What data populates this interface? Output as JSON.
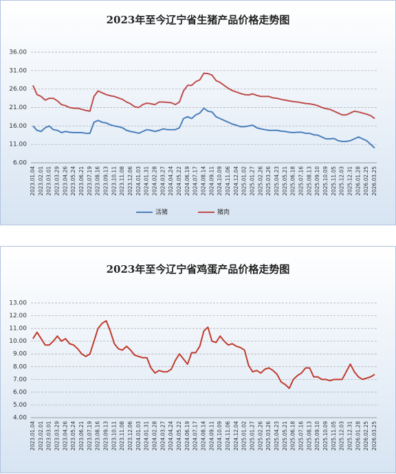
{
  "chart_data": [
    {
      "type": "line",
      "title": "2023年至今辽宁省生猪产品价格走势图",
      "legend": "bottom",
      "grid": true,
      "categories": [
        "2023.01.04",
        null,
        "2023.02.01",
        null,
        "2023.03.01",
        null,
        "2023.03.29",
        null,
        "2023.04.26",
        null,
        "2023.05.24",
        null,
        "2023.06.21",
        null,
        "2023.07.19",
        null,
        "2023.08.16",
        null,
        "2023.09.13",
        null,
        "2023.10.11",
        null,
        "2023.11.08",
        null,
        "2023.12.06",
        null,
        "2024.01.03",
        null,
        "2024.01.31",
        null,
        "2024.02.28",
        null,
        "2024.03.27",
        null,
        "2024.04.24",
        null,
        "2024.05.22",
        null,
        "2024.06.19",
        null,
        "2024.07.17",
        null,
        "2024.08.14",
        null,
        "2024.09.11",
        null,
        "2024.10.09",
        null,
        "2024.11.06",
        null,
        "2024.12.04",
        null,
        "2025.01.02",
        null,
        "2025.01.27",
        null,
        "2025.02.26",
        null,
        "2025.03.26",
        null,
        "2025.04.23",
        null,
        "2025.05.21",
        null,
        "2025.06.18",
        null,
        "2025.07.16",
        null,
        "2025.08.13",
        null,
        "2025.09.10",
        null,
        "2025.10.09",
        null,
        "2025.11.05",
        null,
        "2025.12.03",
        null,
        "2025.12.31",
        null,
        "2026.01.28",
        null,
        "2026.02.25",
        null,
        "2026.03.25"
      ],
      "series": [
        {
          "name": "活猪",
          "color": "#4a7ebb",
          "values": [
            16.0,
            14.8,
            14.5,
            15.5,
            16.0,
            15.0,
            14.8,
            14.2,
            14.5,
            14.3,
            14.2,
            14.2,
            14.2,
            14.0,
            14.0,
            17.0,
            17.5,
            17.0,
            16.8,
            16.3,
            16.0,
            15.8,
            15.5,
            14.8,
            14.5,
            14.3,
            14.0,
            14.5,
            15.0,
            14.8,
            14.5,
            14.8,
            15.2,
            15.0,
            15.0,
            15.0,
            15.5,
            18.0,
            18.5,
            18.0,
            19.0,
            19.5,
            20.8,
            20.0,
            19.8,
            18.5,
            18.0,
            17.5,
            17.0,
            16.5,
            16.2,
            15.8,
            15.8,
            16.0,
            16.2,
            15.5,
            15.2,
            15.0,
            14.8,
            14.8,
            14.8,
            14.6,
            14.5,
            14.3,
            14.2,
            14.3,
            14.3,
            14.0,
            14.0,
            13.6,
            13.5,
            13.0,
            12.5,
            12.5,
            12.6,
            12.0,
            11.8,
            11.8,
            12.0,
            12.5,
            13.0,
            12.5,
            12.0,
            11.0,
            10.0
          ]
        },
        {
          "name": "猪肉",
          "color": "#be4b48",
          "values": [
            27.0,
            24.5,
            24.0,
            23.0,
            23.5,
            23.5,
            22.8,
            21.8,
            21.5,
            21.0,
            20.8,
            20.8,
            20.5,
            20.2,
            20.0,
            24.0,
            25.5,
            25.0,
            24.5,
            24.2,
            24.0,
            23.6,
            23.2,
            22.5,
            22.0,
            21.2,
            21.0,
            21.8,
            22.2,
            22.0,
            21.8,
            22.5,
            22.5,
            22.4,
            22.3,
            21.8,
            22.5,
            25.5,
            27.0,
            27.0,
            28.0,
            28.5,
            30.3,
            30.2,
            29.8,
            28.3,
            27.8,
            27.0,
            26.2,
            25.6,
            25.2,
            24.8,
            24.5,
            24.4,
            24.7,
            24.3,
            24.0,
            24.0,
            24.0,
            23.6,
            23.5,
            23.2,
            23.0,
            22.8,
            22.6,
            22.5,
            22.3,
            22.1,
            22.0,
            21.8,
            21.5,
            21.0,
            20.7,
            20.5,
            20.0,
            19.5,
            19.0,
            19.0,
            19.5,
            20.0,
            19.8,
            19.5,
            19.2,
            18.8,
            18.0
          ]
        }
      ],
      "ylim": [
        6,
        36
      ],
      "yticks": [
        {
          "value": 6,
          "label": "6.00"
        },
        {
          "value": 11,
          "label": "11.00"
        },
        {
          "value": 16,
          "label": "16.00"
        },
        {
          "value": 21,
          "label": "21.00"
        },
        {
          "value": 26,
          "label": "26.00"
        },
        {
          "value": 31,
          "label": "31.00"
        },
        {
          "value": 36,
          "label": "36.00"
        }
      ]
    },
    {
      "type": "line",
      "title": "2023年至今辽宁省鸡蛋产品价格走势图",
      "grid": true,
      "categories": [
        "2023.01.04",
        null,
        "2023.02.01",
        null,
        "2023.03.01",
        null,
        "2023.03.29",
        null,
        "2023.04.26",
        null,
        "2023.05.24",
        null,
        "2023.06.21",
        null,
        "2023.07.19",
        null,
        "2023.08.16",
        null,
        "2023.09.13",
        null,
        "2023.10.11",
        null,
        "2023.11.08",
        null,
        "2023.12.06",
        null,
        "2024.01.03",
        null,
        "2024.01.31",
        null,
        "2024.02.28",
        null,
        "2024.03.27",
        null,
        "2024.04.24",
        null,
        "2024.05.22",
        null,
        "2024.06.19",
        null,
        "2024.07.17",
        null,
        "2024.08.14",
        null,
        "2024.09.11",
        null,
        "2024.10.09",
        null,
        "2024.11.06",
        null,
        "2024.12.04",
        null,
        "2025.01.02",
        null,
        "2025.01.27",
        null,
        "2025.02.26",
        null,
        "2025.03.26",
        null,
        "2025.04.23",
        null,
        "2025.05.21",
        null,
        "2025.06.18",
        null,
        "2025.07.16",
        null,
        "2025.08.13",
        null,
        "2025.09.10",
        null,
        "2025.10.09",
        null,
        "2025.11.05",
        null,
        "2025.12.03",
        null,
        "2025.12.31",
        null,
        "2026.01.28",
        null,
        "2026.02.25",
        null,
        "2026.03.25"
      ],
      "series": [
        {
          "color": "#c0392b",
          "values": [
            10.2,
            10.7,
            10.2,
            9.7,
            9.7,
            10.0,
            10.4,
            10.0,
            10.2,
            9.8,
            9.7,
            9.4,
            9.0,
            8.8,
            9.0,
            10.0,
            11.0,
            11.4,
            11.6,
            10.8,
            9.8,
            9.4,
            9.3,
            9.6,
            9.3,
            8.9,
            8.8,
            8.7,
            8.7,
            7.9,
            7.5,
            7.7,
            7.6,
            7.6,
            7.8,
            8.5,
            9.0,
            8.6,
            8.2,
            9.1,
            9.1,
            9.6,
            10.8,
            11.1,
            10.0,
            9.9,
            10.4,
            10.0,
            9.7,
            9.8,
            9.6,
            9.5,
            9.3,
            8.1,
            7.6,
            7.7,
            7.5,
            7.8,
            7.9,
            7.7,
            7.4,
            6.8,
            6.6,
            6.3,
            7.0,
            7.3,
            7.5,
            7.9,
            7.9,
            7.2,
            7.2,
            7.0,
            7.0,
            6.9,
            7.0,
            7.0,
            7.0,
            7.6,
            8.2,
            7.6,
            7.2,
            7.0,
            7.1,
            7.2,
            7.4
          ]
        }
      ],
      "ylim": [
        4,
        13
      ],
      "yticks": [
        {
          "value": 4,
          "label": "4.00"
        },
        {
          "value": 5,
          "label": "5.00"
        },
        {
          "value": 6,
          "label": "6.00"
        },
        {
          "value": 7,
          "label": "7.00"
        },
        {
          "value": 8,
          "label": "8.00"
        },
        {
          "value": 9,
          "label": "9.00"
        },
        {
          "value": 10,
          "label": "10.00"
        },
        {
          "value": 11,
          "label": "11.00"
        },
        {
          "value": 12,
          "label": "12.00"
        },
        {
          "value": 13,
          "label": "13.00"
        }
      ]
    }
  ]
}
